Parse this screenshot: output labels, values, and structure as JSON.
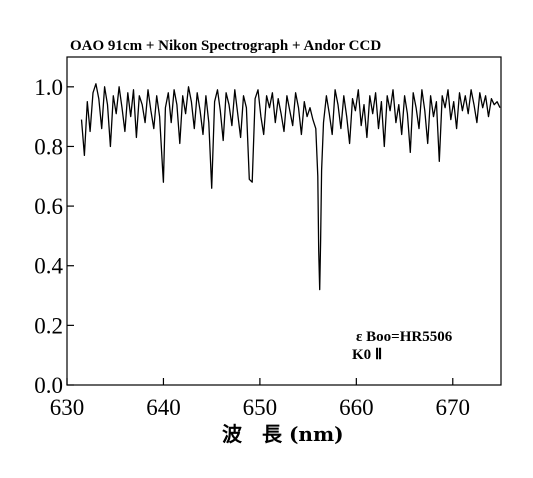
{
  "chart_data": {
    "type": "line",
    "title": "OAO 91cm + Nikon Spectrograph + Andor CCD",
    "xlabel": "波　長 (nm)",
    "ylabel": "",
    "xlim": [
      630,
      675
    ],
    "ylim": [
      0.0,
      1.1
    ],
    "xticks": [
      630,
      640,
      650,
      660,
      670
    ],
    "xtick_labels": [
      "630",
      "640",
      "650",
      "660",
      "670"
    ],
    "yticks": [
      0.0,
      0.2,
      0.4,
      0.6,
      0.8,
      1.0
    ],
    "ytick_labels": [
      "0.0",
      "0.2",
      "0.4",
      "0.6",
      "0.8",
      "1.0"
    ],
    "grid": false,
    "annotations": [
      "ε Boo=HR5506",
      "K0 Ⅱ"
    ],
    "series": [
      {
        "color": "#000000",
        "x": [
          631.5,
          631.8,
          632.1,
          632.4,
          632.7,
          633.0,
          633.3,
          633.6,
          633.9,
          634.2,
          634.5,
          634.8,
          635.1,
          635.4,
          635.7,
          636.0,
          636.3,
          636.6,
          636.9,
          637.2,
          637.5,
          637.8,
          638.1,
          638.4,
          638.7,
          639.0,
          639.3,
          639.6,
          639.9,
          640.0,
          640.2,
          640.5,
          640.8,
          641.1,
          641.4,
          641.7,
          642.0,
          642.3,
          642.6,
          642.9,
          643.2,
          643.5,
          643.8,
          644.1,
          644.4,
          644.7,
          645.0,
          645.3,
          645.6,
          645.9,
          646.2,
          646.5,
          646.8,
          647.1,
          647.4,
          647.7,
          648.0,
          648.3,
          648.6,
          648.9,
          649.2,
          649.5,
          649.8,
          650.1,
          650.4,
          650.7,
          651.0,
          651.3,
          651.6,
          651.9,
          652.2,
          652.5,
          652.8,
          653.1,
          653.4,
          653.7,
          654.0,
          654.3,
          654.6,
          654.9,
          655.2,
          655.5,
          655.8,
          656.0,
          656.1,
          656.2,
          656.3,
          656.4,
          656.6,
          656.9,
          657.2,
          657.5,
          657.8,
          658.1,
          658.4,
          658.7,
          659.0,
          659.3,
          659.6,
          659.9,
          660.2,
          660.5,
          660.8,
          661.1,
          661.4,
          661.7,
          662.0,
          662.3,
          662.6,
          662.9,
          663.2,
          663.5,
          663.8,
          664.1,
          664.4,
          664.7,
          665.0,
          665.3,
          665.6,
          665.9,
          666.2,
          666.5,
          666.8,
          667.1,
          667.4,
          667.7,
          668.0,
          668.3,
          668.6,
          668.9,
          669.2,
          669.5,
          669.8,
          670.1,
          670.4,
          670.7,
          671.0,
          671.3,
          671.6,
          671.9,
          672.2,
          672.5,
          672.8,
          673.1,
          673.4,
          673.7,
          674.0,
          674.3,
          674.6,
          674.9
        ],
        "y": [
          0.89,
          0.77,
          0.95,
          0.85,
          0.98,
          1.01,
          0.96,
          0.86,
          1.0,
          0.94,
          0.8,
          0.97,
          0.91,
          1.0,
          0.93,
          0.85,
          0.98,
          0.9,
          0.99,
          0.83,
          0.97,
          0.94,
          0.88,
          0.99,
          0.92,
          0.86,
          0.97,
          0.9,
          0.73,
          0.68,
          0.93,
          0.98,
          0.88,
          0.99,
          0.94,
          0.81,
          0.97,
          0.91,
          1.0,
          0.95,
          0.86,
          0.98,
          0.92,
          0.84,
          0.97,
          0.88,
          0.66,
          0.95,
          0.99,
          0.92,
          0.82,
          0.98,
          0.94,
          0.87,
          0.99,
          0.91,
          0.83,
          0.97,
          0.93,
          0.69,
          0.68,
          0.96,
          0.99,
          0.9,
          0.84,
          0.97,
          0.93,
          0.98,
          0.88,
          0.96,
          0.91,
          0.85,
          0.97,
          0.92,
          0.87,
          0.98,
          0.93,
          0.84,
          0.95,
          0.9,
          0.93,
          0.89,
          0.86,
          0.7,
          0.45,
          0.32,
          0.48,
          0.72,
          0.88,
          0.97,
          0.91,
          0.84,
          0.99,
          0.94,
          0.86,
          0.97,
          0.9,
          0.81,
          0.96,
          0.92,
          0.99,
          0.87,
          0.94,
          0.83,
          0.97,
          0.91,
          0.98,
          0.86,
          0.95,
          0.8,
          0.97,
          0.92,
          0.99,
          0.88,
          0.94,
          0.84,
          0.97,
          0.91,
          0.78,
          0.98,
          0.93,
          0.86,
          0.99,
          0.92,
          0.81,
          0.97,
          0.9,
          0.95,
          0.75,
          0.97,
          0.93,
          0.99,
          0.89,
          0.95,
          0.86,
          0.98,
          0.92,
          0.97,
          0.91,
          0.99,
          0.94,
          0.88,
          0.98,
          0.93,
          0.97,
          0.9,
          0.96,
          0.94,
          0.95,
          0.93
        ]
      }
    ]
  }
}
